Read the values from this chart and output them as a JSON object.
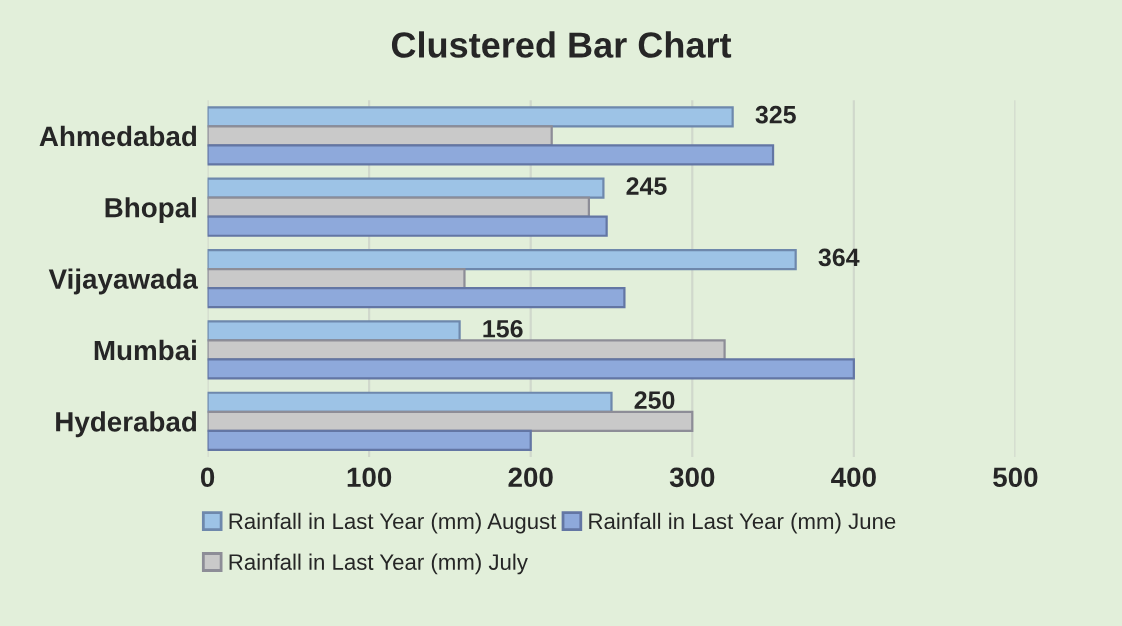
{
  "chart_data": {
    "type": "bar",
    "orientation": "horizontal",
    "title": "Clustered Bar Chart",
    "categories": [
      "Ahmedabad",
      "Bhopal",
      "Vijayawada",
      "Mumbai",
      "Hyderabad"
    ],
    "series": [
      {
        "name": "Rainfall in Last Year (mm) August",
        "color": "#9dc3e6",
        "values": [
          325,
          245,
          364,
          156,
          250
        ],
        "value_labels": [
          "325",
          "245",
          "364",
          "156",
          "250"
        ]
      },
      {
        "name": "Rainfall in Last Year (mm) July",
        "color": "#c9c9c9",
        "values": [
          213,
          236,
          159,
          320,
          300
        ]
      },
      {
        "name": "Rainfall in Last Year (mm) June",
        "color": "#8ea9db",
        "values": [
          350,
          247,
          258,
          400,
          200
        ]
      }
    ],
    "xlim": [
      0,
      500
    ],
    "xticks": [
      0,
      100,
      200,
      300,
      400,
      500
    ],
    "grid": "x",
    "legend": "bottom"
  }
}
